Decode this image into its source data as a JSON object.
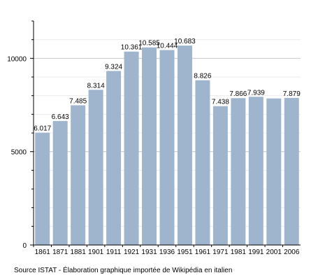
{
  "chart_data": {
    "type": "bar",
    "categories": [
      "1861",
      "1871",
      "1881",
      "1901",
      "1911",
      "1921",
      "1931",
      "1936",
      "1951",
      "1961",
      "1971",
      "1981",
      "1991",
      "2001",
      "2006"
    ],
    "values": [
      6017,
      6643,
      7485,
      8314,
      9324,
      10361,
      10585,
      10444,
      10683,
      8826,
      7438,
      7866,
      7939,
      7850,
      7879
    ],
    "value_labels": [
      "6.017",
      "6.643",
      "7.485",
      "8.314",
      "9.324",
      "10.361",
      "10.585",
      "10.444",
      "10.683",
      "8.826",
      "7.438",
      "7.866",
      "7.939",
      "",
      "7.879"
    ],
    "y_ticks": [
      0,
      5000,
      10000
    ],
    "ylim": [
      0,
      12000
    ],
    "grid": true,
    "bar_color": "#9fb5cd",
    "title": "",
    "xlabel": "",
    "ylabel": ""
  },
  "source_text": "Source ISTAT - Élaboration graphique importée de Wikipédia en italien"
}
